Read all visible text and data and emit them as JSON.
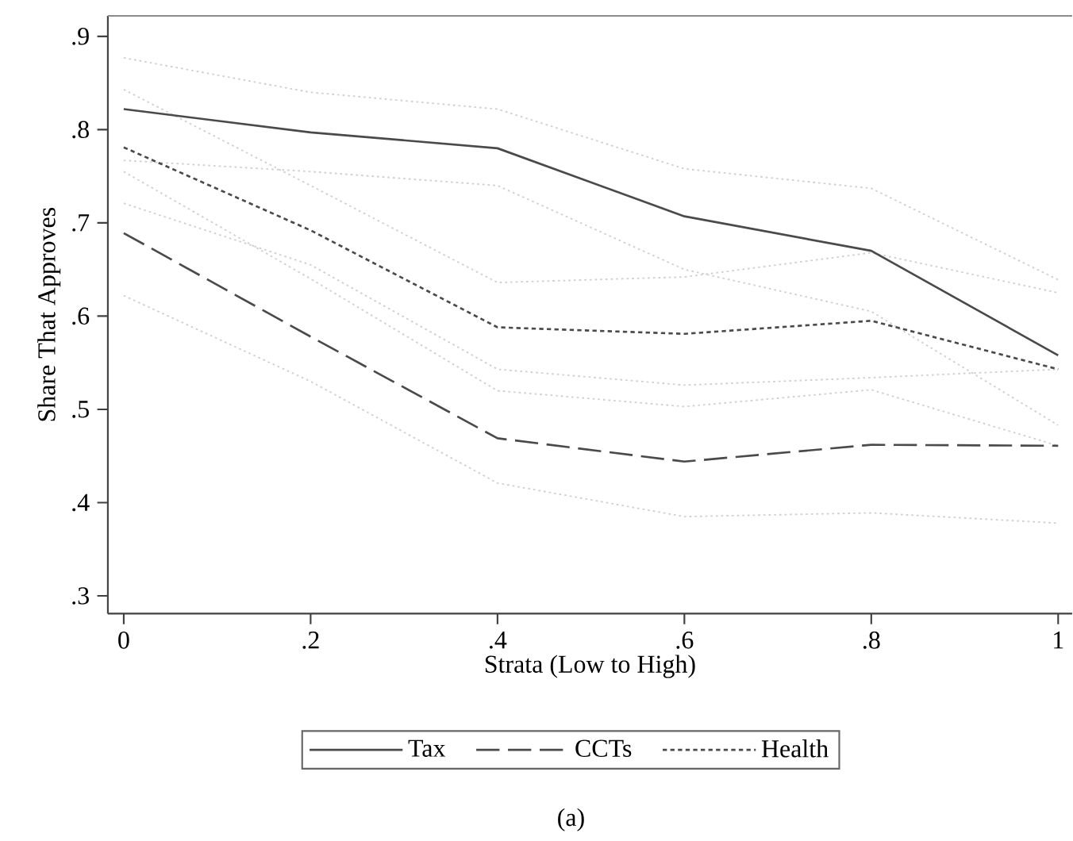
{
  "chart_data": {
    "type": "line",
    "xlabel": "Strata (Low to High)",
    "ylabel": "Share That Approves",
    "x": [
      0,
      0.2,
      0.4,
      0.6,
      0.8,
      1
    ],
    "xlim": [
      -0.017,
      1.015
    ],
    "ylim": [
      0.281,
      0.922
    ],
    "xticks": [
      0,
      {
        "value": 0.2,
        "label": ".2"
      },
      {
        "value": 0.4,
        "label": ".4"
      },
      {
        "value": 0.6,
        "label": ".6"
      },
      {
        "value": 0.8,
        "label": ".8"
      },
      1
    ],
    "yticks": [
      {
        "value": 0.3,
        "label": ".3"
      },
      {
        "value": 0.4,
        "label": ".4"
      },
      {
        "value": 0.5,
        "label": ".5"
      },
      {
        "value": 0.6,
        "label": ".6"
      },
      {
        "value": 0.7,
        "label": ".7"
      },
      {
        "value": 0.8,
        "label": ".8"
      },
      {
        "value": 0.9,
        "label": ".9"
      }
    ],
    "grid": false,
    "legend": "bottom",
    "marker": "none",
    "series": [
      {
        "color": "#d0d0d0",
        "line_style": "dotted",
        "values": [
          0.877,
          0.84,
          0.822,
          0.758,
          0.737,
          0.639
        ]
      },
      {
        "color": "#d0d0d0",
        "line_style": "dotted",
        "values": [
          0.767,
          0.755,
          0.74,
          0.65,
          0.605,
          0.483
        ]
      },
      {
        "color": "#d0d0d0",
        "line_style": "dotted",
        "values": [
          0.843,
          0.74,
          0.636,
          0.642,
          0.668,
          0.625
        ]
      },
      {
        "color": "#d0d0d0",
        "line_style": "dotted",
        "values": [
          0.721,
          0.655,
          0.543,
          0.526,
          0.534,
          0.543
        ]
      },
      {
        "color": "#d0d0d0",
        "line_style": "dotted",
        "values": [
          0.755,
          0.64,
          0.52,
          0.503,
          0.521,
          0.461
        ]
      },
      {
        "color": "#d0d0d0",
        "line_style": "dotted",
        "values": [
          0.622,
          0.53,
          0.421,
          0.385,
          0.389,
          0.378
        ]
      },
      {
        "name": "Tax",
        "color": "#4a4a4a",
        "line_style": "solid",
        "values": [
          0.822,
          0.797,
          0.78,
          0.707,
          0.67,
          0.558
        ]
      },
      {
        "name": "CCTs",
        "color": "#4a4a4a",
        "line_style": "dashed",
        "values": [
          0.689,
          0.578,
          0.469,
          0.444,
          0.462,
          0.461
        ]
      },
      {
        "name": "Health",
        "color": "#4a4a4a",
        "line_style": "dotted",
        "values": [
          0.781,
          0.692,
          0.588,
          0.581,
          0.595,
          0.543
        ]
      }
    ],
    "annotations": [
      "(a)"
    ]
  }
}
